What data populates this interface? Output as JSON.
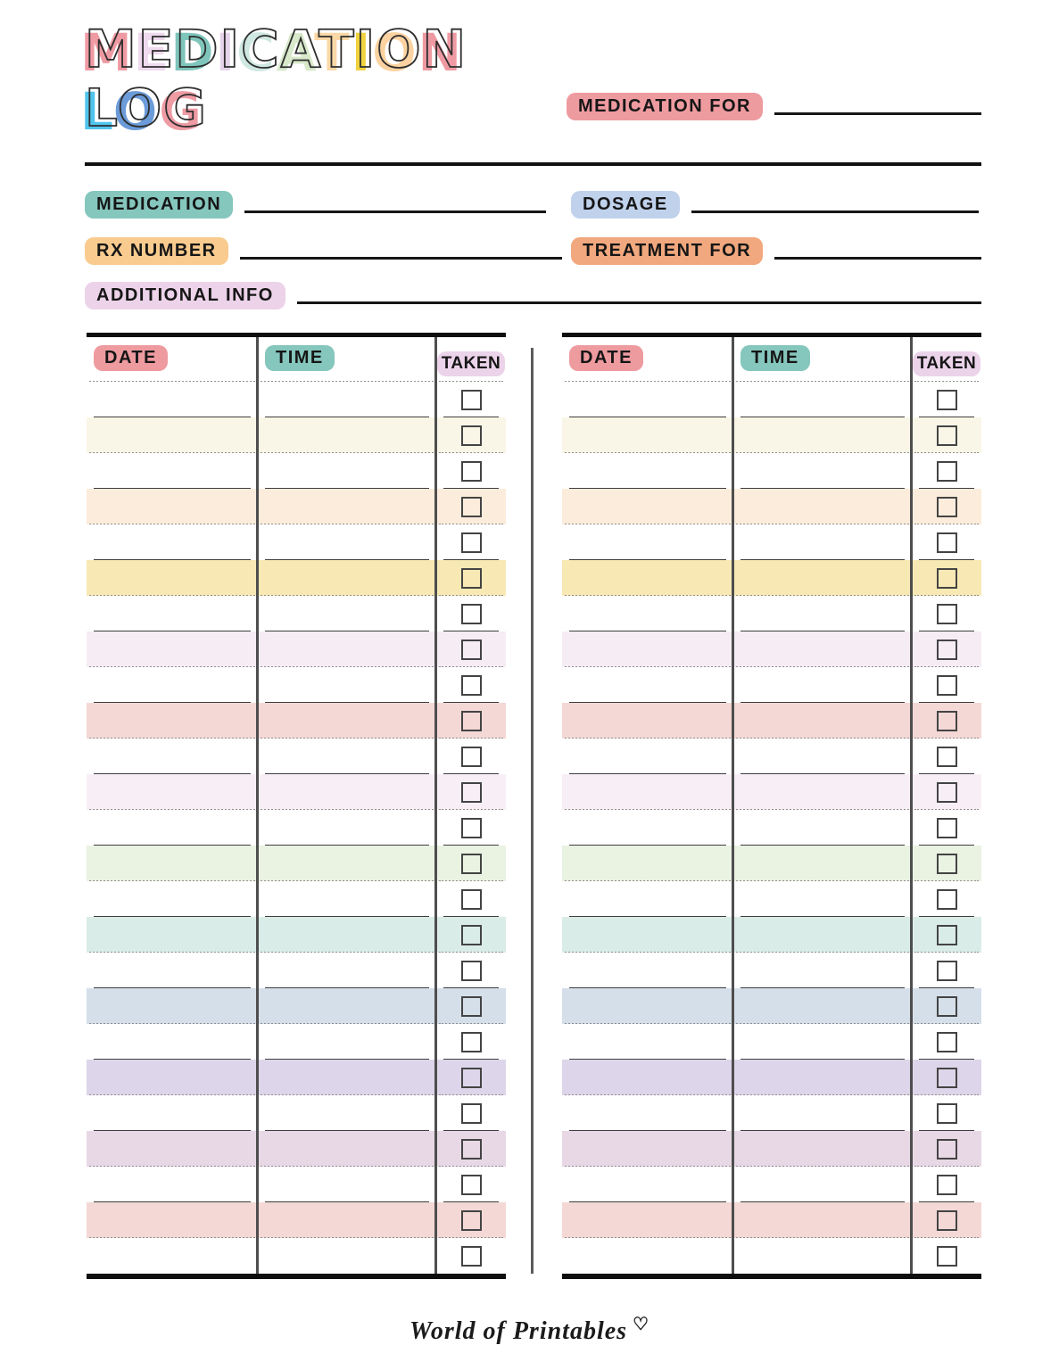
{
  "title": {
    "line1": {
      "text": "MEDICATION",
      "letter_colors": [
        "#ef9aa3",
        "#eed9ee",
        "#7fc5bb",
        "#e5d3ea",
        "#cfe8e1",
        "#d7e9ca",
        "#fad8a6",
        "#efd23e",
        "#fbd2a0",
        "#ef9aa3"
      ]
    },
    "line2": {
      "text": "LOG",
      "letter_colors": [
        "#4fc4ec",
        "#6b9bd8",
        "#ee9ba4"
      ]
    }
  },
  "fields": {
    "medication_for": {
      "label": "MEDICATION FOR",
      "highlight": "#ee9ba0",
      "value": ""
    },
    "medication": {
      "label": "MEDICATION",
      "highlight": "#85c6bd",
      "value": ""
    },
    "dosage": {
      "label": "DOSAGE",
      "highlight": "#c0d1ec",
      "value": ""
    },
    "rx_number": {
      "label": "RX NUMBER",
      "highlight": "#f9cb8e",
      "value": ""
    },
    "treatment_for": {
      "label": "TREATMENT FOR",
      "highlight": "#f2a87e",
      "value": ""
    },
    "additional_info": {
      "label": "ADDITIONAL INFO",
      "highlight": "#ecd3e9",
      "value": ""
    }
  },
  "log_table": {
    "columns": [
      {
        "label": "DATE",
        "highlight": "#ee9ba0"
      },
      {
        "label": "TIME",
        "highlight": "#85c6bd"
      },
      {
        "label": "TAKEN",
        "highlight": "#ebd3ea"
      }
    ],
    "tables": [
      "left",
      "right"
    ],
    "rows": [
      {
        "bg": "#ffffff",
        "separator": "solid",
        "date": "",
        "time": "",
        "taken": false
      },
      {
        "bg": "#faf6e7",
        "separator": "dashed",
        "date": "",
        "time": "",
        "taken": false
      },
      {
        "bg": "#ffffff",
        "separator": "solid",
        "date": "",
        "time": "",
        "taken": false
      },
      {
        "bg": "#fcecdb",
        "separator": "dashed",
        "date": "",
        "time": "",
        "taken": false
      },
      {
        "bg": "#ffffff",
        "separator": "solid",
        "date": "",
        "time": "",
        "taken": false
      },
      {
        "bg": "#f8e9b4",
        "separator": "dashed",
        "date": "",
        "time": "",
        "taken": false
      },
      {
        "bg": "#ffffff",
        "separator": "solid",
        "date": "",
        "time": "",
        "taken": false
      },
      {
        "bg": "#f6ecf4",
        "separator": "dashed",
        "date": "",
        "time": "",
        "taken": false
      },
      {
        "bg": "#ffffff",
        "separator": "solid",
        "date": "",
        "time": "",
        "taken": false
      },
      {
        "bg": "#f4d8d6",
        "separator": "dashed",
        "date": "",
        "time": "",
        "taken": false
      },
      {
        "bg": "#ffffff",
        "separator": "solid",
        "date": "",
        "time": "",
        "taken": false
      },
      {
        "bg": "#f8eff6",
        "separator": "dashed",
        "date": "",
        "time": "",
        "taken": false
      },
      {
        "bg": "#ffffff",
        "separator": "solid",
        "date": "",
        "time": "",
        "taken": false
      },
      {
        "bg": "#eaf2e2",
        "separator": "dashed",
        "date": "",
        "time": "",
        "taken": false
      },
      {
        "bg": "#ffffff",
        "separator": "solid",
        "date": "",
        "time": "",
        "taken": false
      },
      {
        "bg": "#daece7",
        "separator": "dashed",
        "date": "",
        "time": "",
        "taken": false
      },
      {
        "bg": "#ffffff",
        "separator": "solid",
        "date": "",
        "time": "",
        "taken": false
      },
      {
        "bg": "#d5dfea",
        "separator": "dashed",
        "date": "",
        "time": "",
        "taken": false
      },
      {
        "bg": "#ffffff",
        "separator": "solid",
        "date": "",
        "time": "",
        "taken": false
      },
      {
        "bg": "#ddd5e9",
        "separator": "dashed",
        "date": "",
        "time": "",
        "taken": false
      },
      {
        "bg": "#ffffff",
        "separator": "solid",
        "date": "",
        "time": "",
        "taken": false
      },
      {
        "bg": "#e8d8e5",
        "separator": "dashed",
        "date": "",
        "time": "",
        "taken": false
      },
      {
        "bg": "#ffffff",
        "separator": "solid",
        "date": "",
        "time": "",
        "taken": false
      },
      {
        "bg": "#f3d8d5",
        "separator": "dashed",
        "date": "",
        "time": "",
        "taken": false
      },
      {
        "bg": "#ffffff",
        "separator": "none",
        "date": "",
        "time": "",
        "taken": false
      }
    ]
  },
  "footer": {
    "brand": "World of Printables",
    "heart_glyph": "♡"
  }
}
